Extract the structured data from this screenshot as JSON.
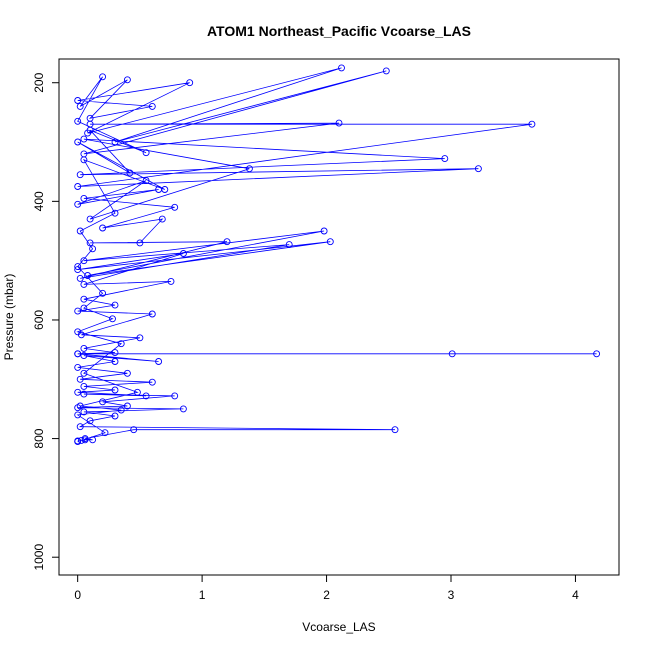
{
  "chart_data": {
    "type": "line",
    "title": "ATOM1 Northeast_Pacific Vcoarse_LAS",
    "xlabel": "Vcoarse_LAS",
    "ylabel": "Pressure (mbar)",
    "xlim": [
      -0.15,
      4.35
    ],
    "ylim": [
      1030,
      160
    ],
    "y_inverted": true,
    "x_ticks": [
      0,
      1,
      2,
      3,
      4
    ],
    "y_ticks": [
      200,
      400,
      600,
      800,
      1000
    ],
    "grid": false,
    "legend": "none",
    "series_color": "#0000ff",
    "marker": "open-circle",
    "series": [
      {
        "points": [
          [
            0.0,
            804
          ],
          [
            0.03,
            803
          ],
          [
            0.06,
            802
          ],
          [
            0.12,
            802
          ],
          [
            0.06,
            800
          ],
          [
            0.45,
            785
          ],
          [
            2.55,
            785
          ],
          [
            0.02,
            780
          ],
          [
            0.1,
            770
          ],
          [
            0.3,
            762
          ],
          [
            0.05,
            755
          ],
          [
            0.85,
            750
          ],
          [
            0.0,
            748
          ],
          [
            0.4,
            745
          ],
          [
            0.2,
            738
          ],
          [
            0.78,
            728
          ],
          [
            0.05,
            725
          ],
          [
            0.55,
            728
          ],
          [
            0.0,
            722
          ],
          [
            0.3,
            718
          ],
          [
            0.05,
            712
          ],
          [
            0.6,
            705
          ],
          [
            0.02,
            700
          ],
          [
            0.4,
            690
          ],
          [
            0.0,
            680
          ],
          [
            0.3,
            670
          ],
          [
            0.05,
            660
          ],
          [
            0.65,
            670
          ],
          [
            0.0,
            657
          ],
          [
            3.01,
            657
          ],
          [
            4.17,
            657
          ],
          [
            0.0,
            657
          ],
          [
            0.3,
            655
          ],
          [
            0.05,
            648
          ],
          [
            0.5,
            630
          ],
          [
            0.03,
            625
          ],
          [
            0.6,
            590
          ],
          [
            0.0,
            585
          ],
          [
            0.3,
            575
          ],
          [
            0.05,
            565
          ],
          [
            0.75,
            535
          ],
          [
            0.05,
            540
          ],
          [
            0.85,
            488
          ],
          [
            0.0,
            515
          ],
          [
            2.03,
            468
          ],
          [
            0.08,
            525
          ],
          [
            1.98,
            450
          ],
          [
            0.05,
            500
          ],
          [
            1.7,
            473
          ],
          [
            0.02,
            530
          ],
          [
            1.2,
            468
          ],
          [
            0.1,
            470
          ],
          [
            0.5,
            470
          ],
          [
            0.68,
            430
          ],
          [
            0.2,
            445
          ],
          [
            0.78,
            410
          ],
          [
            0.05,
            395
          ],
          [
            0.65,
            380
          ],
          [
            0.0,
            405
          ],
          [
            0.55,
            365
          ],
          [
            0.1,
            430
          ],
          [
            1.38,
            345
          ],
          [
            0.05,
            295
          ],
          [
            2.95,
            328
          ],
          [
            0.02,
            355
          ],
          [
            3.22,
            345
          ],
          [
            0.0,
            375
          ],
          [
            3.65,
            270
          ],
          [
            0.1,
            270
          ],
          [
            2.1,
            268
          ],
          [
            0.05,
            320
          ],
          [
            2.48,
            180
          ],
          [
            0.3,
            300
          ],
          [
            2.12,
            175
          ],
          [
            0.08,
            285
          ],
          [
            0.9,
            200
          ],
          [
            0.0,
            230
          ],
          [
            0.6,
            240
          ],
          [
            0.1,
            260
          ],
          [
            0.4,
            195
          ],
          [
            0.02,
            240
          ],
          [
            0.2,
            190
          ],
          [
            0.0,
            265
          ],
          [
            0.55,
            318
          ],
          [
            0.1,
            280
          ],
          [
            0.42,
            352
          ],
          [
            0.0,
            300
          ],
          [
            0.7,
            380
          ],
          [
            0.05,
            330
          ],
          [
            0.3,
            420
          ],
          [
            0.02,
            450
          ],
          [
            0.12,
            480
          ],
          [
            0.0,
            510
          ],
          [
            0.2,
            555
          ],
          [
            0.05,
            580
          ],
          [
            0.28,
            598
          ],
          [
            0.0,
            620
          ],
          [
            0.35,
            640
          ],
          [
            0.05,
            690
          ],
          [
            0.48,
            722
          ],
          [
            0.02,
            745
          ],
          [
            0.35,
            752
          ],
          [
            0.0,
            760
          ],
          [
            0.22,
            790
          ],
          [
            0.0,
            805
          ]
        ]
      }
    ]
  }
}
